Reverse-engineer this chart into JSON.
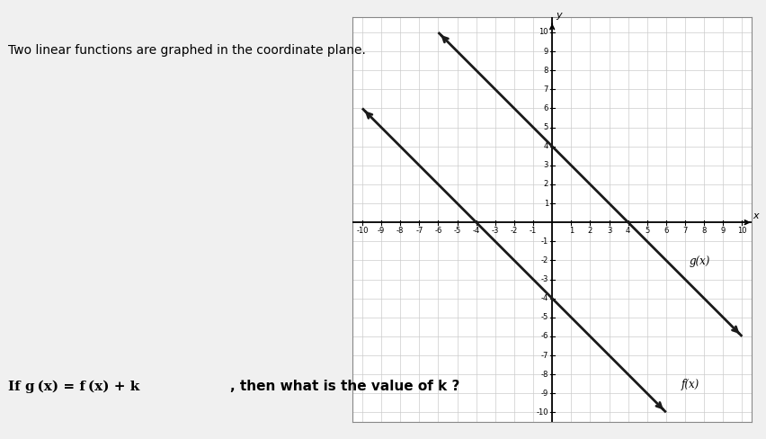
{
  "title_text": "Two linear functions are graphed in the coordinate plane.",
  "question_text": "If g (x) = f (x) + k    , then what is the value of k ?",
  "f_slope": -1.0,
  "f_intercept": -4,
  "g_slope": -1.0,
  "g_intercept": 4,
  "x_range": [
    -10,
    10
  ],
  "y_range": [
    -10,
    10
  ],
  "line_color": "#1a1a1a",
  "line_width": 2.0,
  "grid_color": "#cccccc",
  "axis_color": "#000000",
  "outer_bg": "#f0f0f0",
  "plot_bg_color": "#ffffff",
  "label_f": "f(x)",
  "label_g": "g(x)",
  "figsize": [
    8.53,
    4.88
  ],
  "dpi": 100
}
